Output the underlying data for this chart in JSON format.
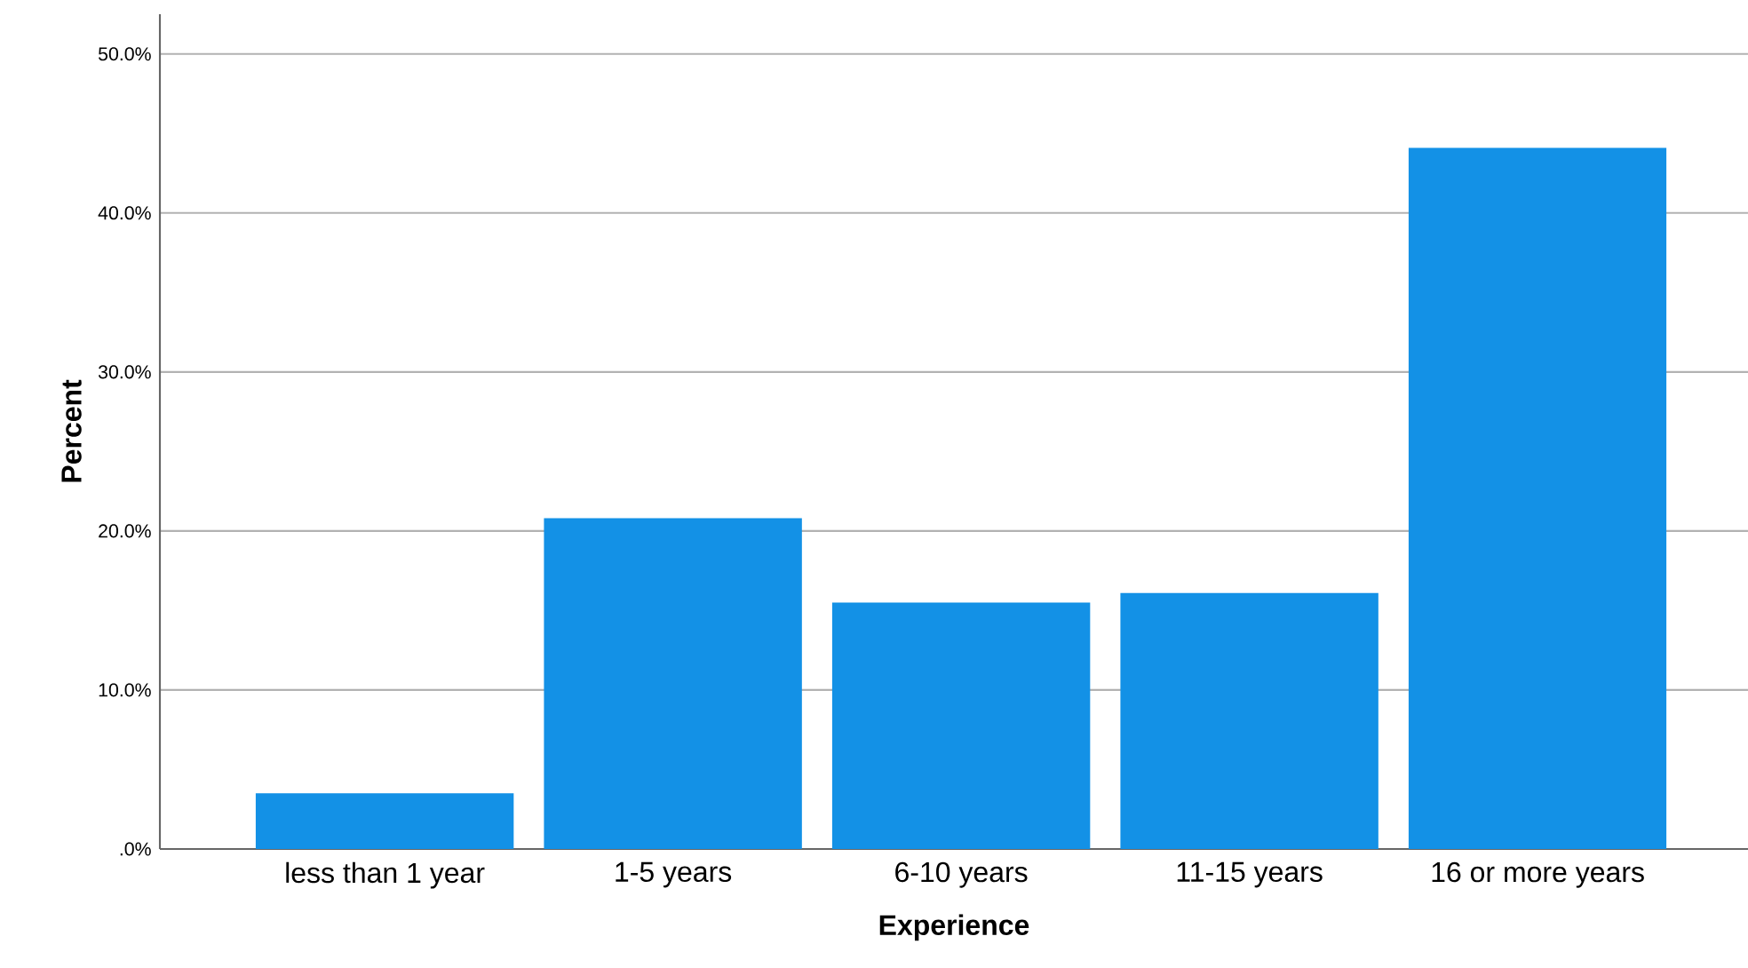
{
  "chart_data": {
    "type": "bar",
    "xlabel": "Experience",
    "ylabel": "Percent",
    "categories": [
      "less than 1 year",
      "1-5 years",
      "6-10 years",
      "11-15 years",
      "16 or more years"
    ],
    "values": [
      3.5,
      20.8,
      15.5,
      16.1,
      44.1
    ],
    "color": "#1391e6",
    "ylim": [
      0,
      52.5
    ],
    "yticks": [
      {
        "value": 0,
        "label": ".0%"
      },
      {
        "value": 10,
        "label": "10.0%"
      },
      {
        "value": 20,
        "label": "20.0%"
      },
      {
        "value": 30,
        "label": "30.0%"
      },
      {
        "value": 40,
        "label": "40.0%"
      },
      {
        "value": 50,
        "label": "50.0%"
      }
    ],
    "grid": "y"
  }
}
